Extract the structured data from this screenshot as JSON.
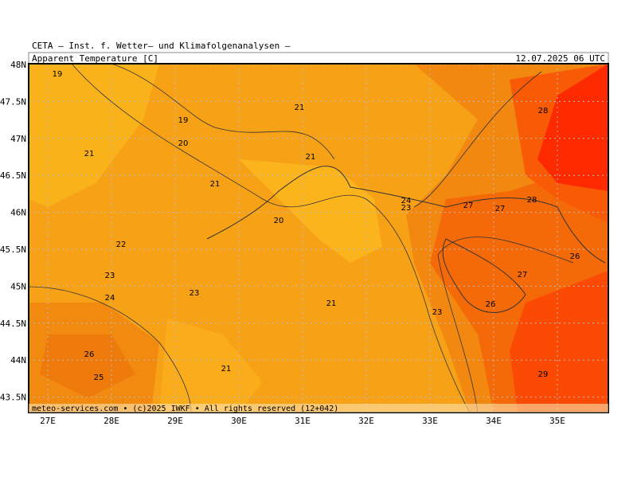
{
  "header": {
    "institute": "CETA – Inst. f. Wetter– und Klimafolgenanalysen –",
    "parameter": "Apparent Temperature [C]",
    "datetime": "12.07.2025 06 UTC"
  },
  "footer": "meteo-services.com • (c)2025 IWKF • All rights reserved (12+042)",
  "lat_labels": [
    "48N",
    "47.5N",
    "47N",
    "46.5N",
    "46N",
    "45.5N",
    "45N",
    "44.5N",
    "44N",
    "43.5N"
  ],
  "lon_labels": [
    "27E",
    "28E",
    "29E",
    "30E",
    "31E",
    "32E",
    "33E",
    "34E",
    "35E"
  ],
  "contour_labels": [
    19,
    19,
    20,
    21,
    21,
    21,
    21,
    20,
    24,
    23,
    27,
    27,
    28,
    28,
    26,
    27,
    26,
    23,
    21,
    22,
    23,
    24,
    23,
    26,
    25,
    21,
    29
  ]
}
